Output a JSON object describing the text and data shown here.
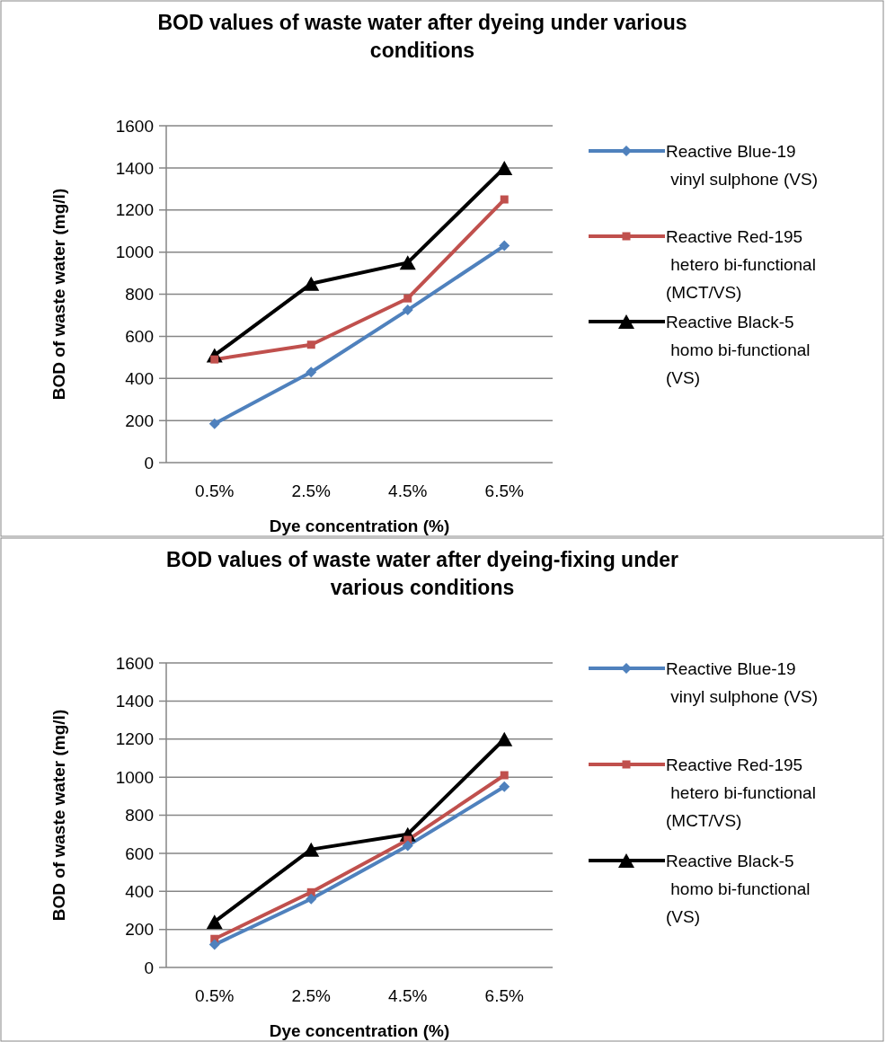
{
  "chart_data": [
    {
      "type": "line",
      "title": "BOD values of waste water after dyeing under various conditions",
      "xlabel": "Dye concentration (%)",
      "ylabel": "BOD of waste water (mg/l)",
      "categories": [
        "0.5%",
        "2.5%",
        "4.5%",
        "6.5%"
      ],
      "ylim": [
        0,
        1600
      ],
      "yticks": [
        0,
        200,
        400,
        600,
        800,
        1000,
        1200,
        1400,
        1600
      ],
      "grid": "y",
      "legend": "right",
      "series": [
        {
          "name": "Reactive Blue-19\n vinyl sulphone (VS)",
          "color": "#4f81bd",
          "marker": "diamond",
          "values": [
            185,
            430,
            725,
            1030
          ]
        },
        {
          "name": "Reactive Red-195\n hetero bi-functional\n(MCT/VS)",
          "color": "#c0504d",
          "marker": "square",
          "values": [
            490,
            560,
            780,
            1250
          ]
        },
        {
          "name": "Reactive Black-5\n homo bi-functional\n(VS)",
          "color": "#000000",
          "marker": "triangle",
          "values": [
            510,
            850,
            950,
            1400
          ]
        }
      ]
    },
    {
      "type": "line",
      "title": "BOD values of waste water after dyeing-fixing under various conditions",
      "xlabel": "Dye concentration (%)",
      "ylabel": "BOD of waste water (mg/l)",
      "categories": [
        "0.5%",
        "2.5%",
        "4.5%",
        "6.5%"
      ],
      "ylim": [
        0,
        1600
      ],
      "yticks": [
        0,
        200,
        400,
        600,
        800,
        1000,
        1200,
        1400,
        1600
      ],
      "grid": "y",
      "legend": "right",
      "series": [
        {
          "name": "Reactive Blue-19\n vinyl sulphone (VS)",
          "color": "#4f81bd",
          "marker": "diamond",
          "values": [
            120,
            360,
            640,
            950
          ]
        },
        {
          "name": "Reactive Red-195\n hetero bi-functional\n(MCT/VS)",
          "color": "#c0504d",
          "marker": "square",
          "values": [
            150,
            395,
            670,
            1010
          ]
        },
        {
          "name": "Reactive Black-5\n homo bi-functional\n(VS)",
          "color": "#000000",
          "marker": "triangle",
          "values": [
            240,
            620,
            700,
            1200
          ]
        }
      ]
    }
  ]
}
